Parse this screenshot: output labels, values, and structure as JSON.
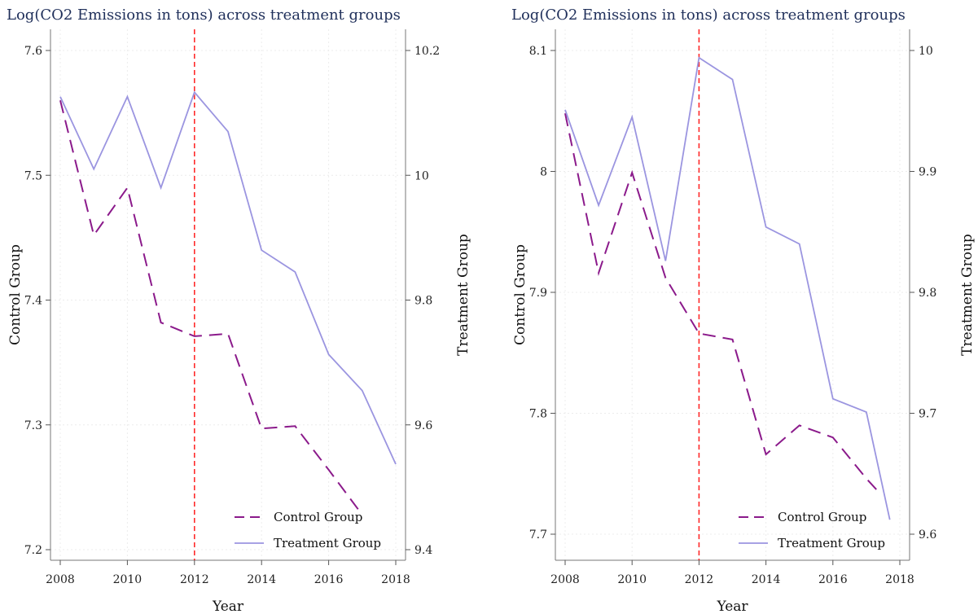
{
  "colors": {
    "control": "#8b1a8b",
    "treatment": "#9b95e0",
    "policy_line": "#ff2a2a",
    "title": "#1f2f5a"
  },
  "chart_data": [
    {
      "type": "line",
      "title": "Log(CO2 Emissions in tons) across treatment groups",
      "xlabel": "Year",
      "ylabel_left": "Control Group",
      "ylabel_right": "Treatment Group",
      "xlim": [
        2008,
        2018
      ],
      "x_ticks": [
        "2008",
        "2010",
        "2012",
        "2014",
        "2016",
        "2018"
      ],
      "ylim_left": [
        7.2,
        7.6
      ],
      "y_ticks_left": [
        "7.2",
        "7.3",
        "7.4",
        "7.5",
        "7.6"
      ],
      "ylim_right": [
        9.4,
        10.2
      ],
      "y_ticks_right": [
        "9.4",
        "9.6",
        "9.8",
        "10",
        "10.2"
      ],
      "vline_x": 2012,
      "grid": true,
      "legend": "bottom-right",
      "legend_entries": [
        "Control Group",
        "Treatment Group"
      ],
      "series": [
        {
          "name": "Control Group",
          "axis": "left",
          "style": "dashed",
          "x": [
            2008,
            2009,
            2010,
            2011,
            2012,
            2013,
            2014,
            2015,
            2016,
            2017
          ],
          "y": [
            7.56,
            7.452,
            7.49,
            7.382,
            7.371,
            7.373,
            7.297,
            7.299,
            7.264,
            7.228
          ]
        },
        {
          "name": "Treatment Group",
          "axis": "right",
          "style": "solid",
          "x": [
            2008,
            2009,
            2010,
            2011,
            2012,
            2013,
            2014,
            2015,
            2016,
            2017,
            2018
          ],
          "y": [
            10.126,
            10.01,
            10.126,
            9.98,
            10.133,
            10.07,
            9.88,
            9.845,
            9.713,
            9.655,
            9.537
          ]
        }
      ]
    },
    {
      "type": "line",
      "title": "Log(CO2 Emissions in tons) across treatment groups",
      "xlabel": "Year",
      "ylabel_left": "Control Group",
      "ylabel_right": "Treatment Group",
      "xlim": [
        2008,
        2018
      ],
      "x_ticks": [
        "2008",
        "2010",
        "2012",
        "2014",
        "2016",
        "2018"
      ],
      "ylim_left": [
        7.7,
        8.1
      ],
      "y_ticks_left": [
        "7.7",
        "7.8",
        "7.9",
        "8",
        "8.1"
      ],
      "ylim_right": [
        9.6,
        10.0
      ],
      "y_ticks_right": [
        "9.6",
        "9.7",
        "9.8",
        "9.9",
        "10"
      ],
      "vline_x": 2012,
      "grid": true,
      "legend": "bottom-right",
      "legend_entries": [
        "Control Group",
        "Treatment Group"
      ],
      "series": [
        {
          "name": "Control Group",
          "axis": "left",
          "style": "dashed",
          "x": [
            2008,
            2009,
            2010,
            2011,
            2012,
            2013,
            2014,
            2015,
            2016,
            2017,
            2017.3
          ],
          "y": [
            8.048,
            7.916,
            7.999,
            7.912,
            7.866,
            7.861,
            7.766,
            7.79,
            7.78,
            7.746,
            7.737
          ]
        },
        {
          "name": "Treatment Group",
          "axis": "right",
          "style": "solid",
          "x": [
            2008,
            2009,
            2010,
            2011,
            2012,
            2013,
            2014,
            2015,
            2016,
            2017,
            2017.7
          ],
          "y": [
            9.951,
            9.872,
            9.945,
            9.826,
            9.994,
            9.976,
            9.854,
            9.84,
            9.712,
            9.701,
            9.612
          ]
        }
      ]
    }
  ]
}
